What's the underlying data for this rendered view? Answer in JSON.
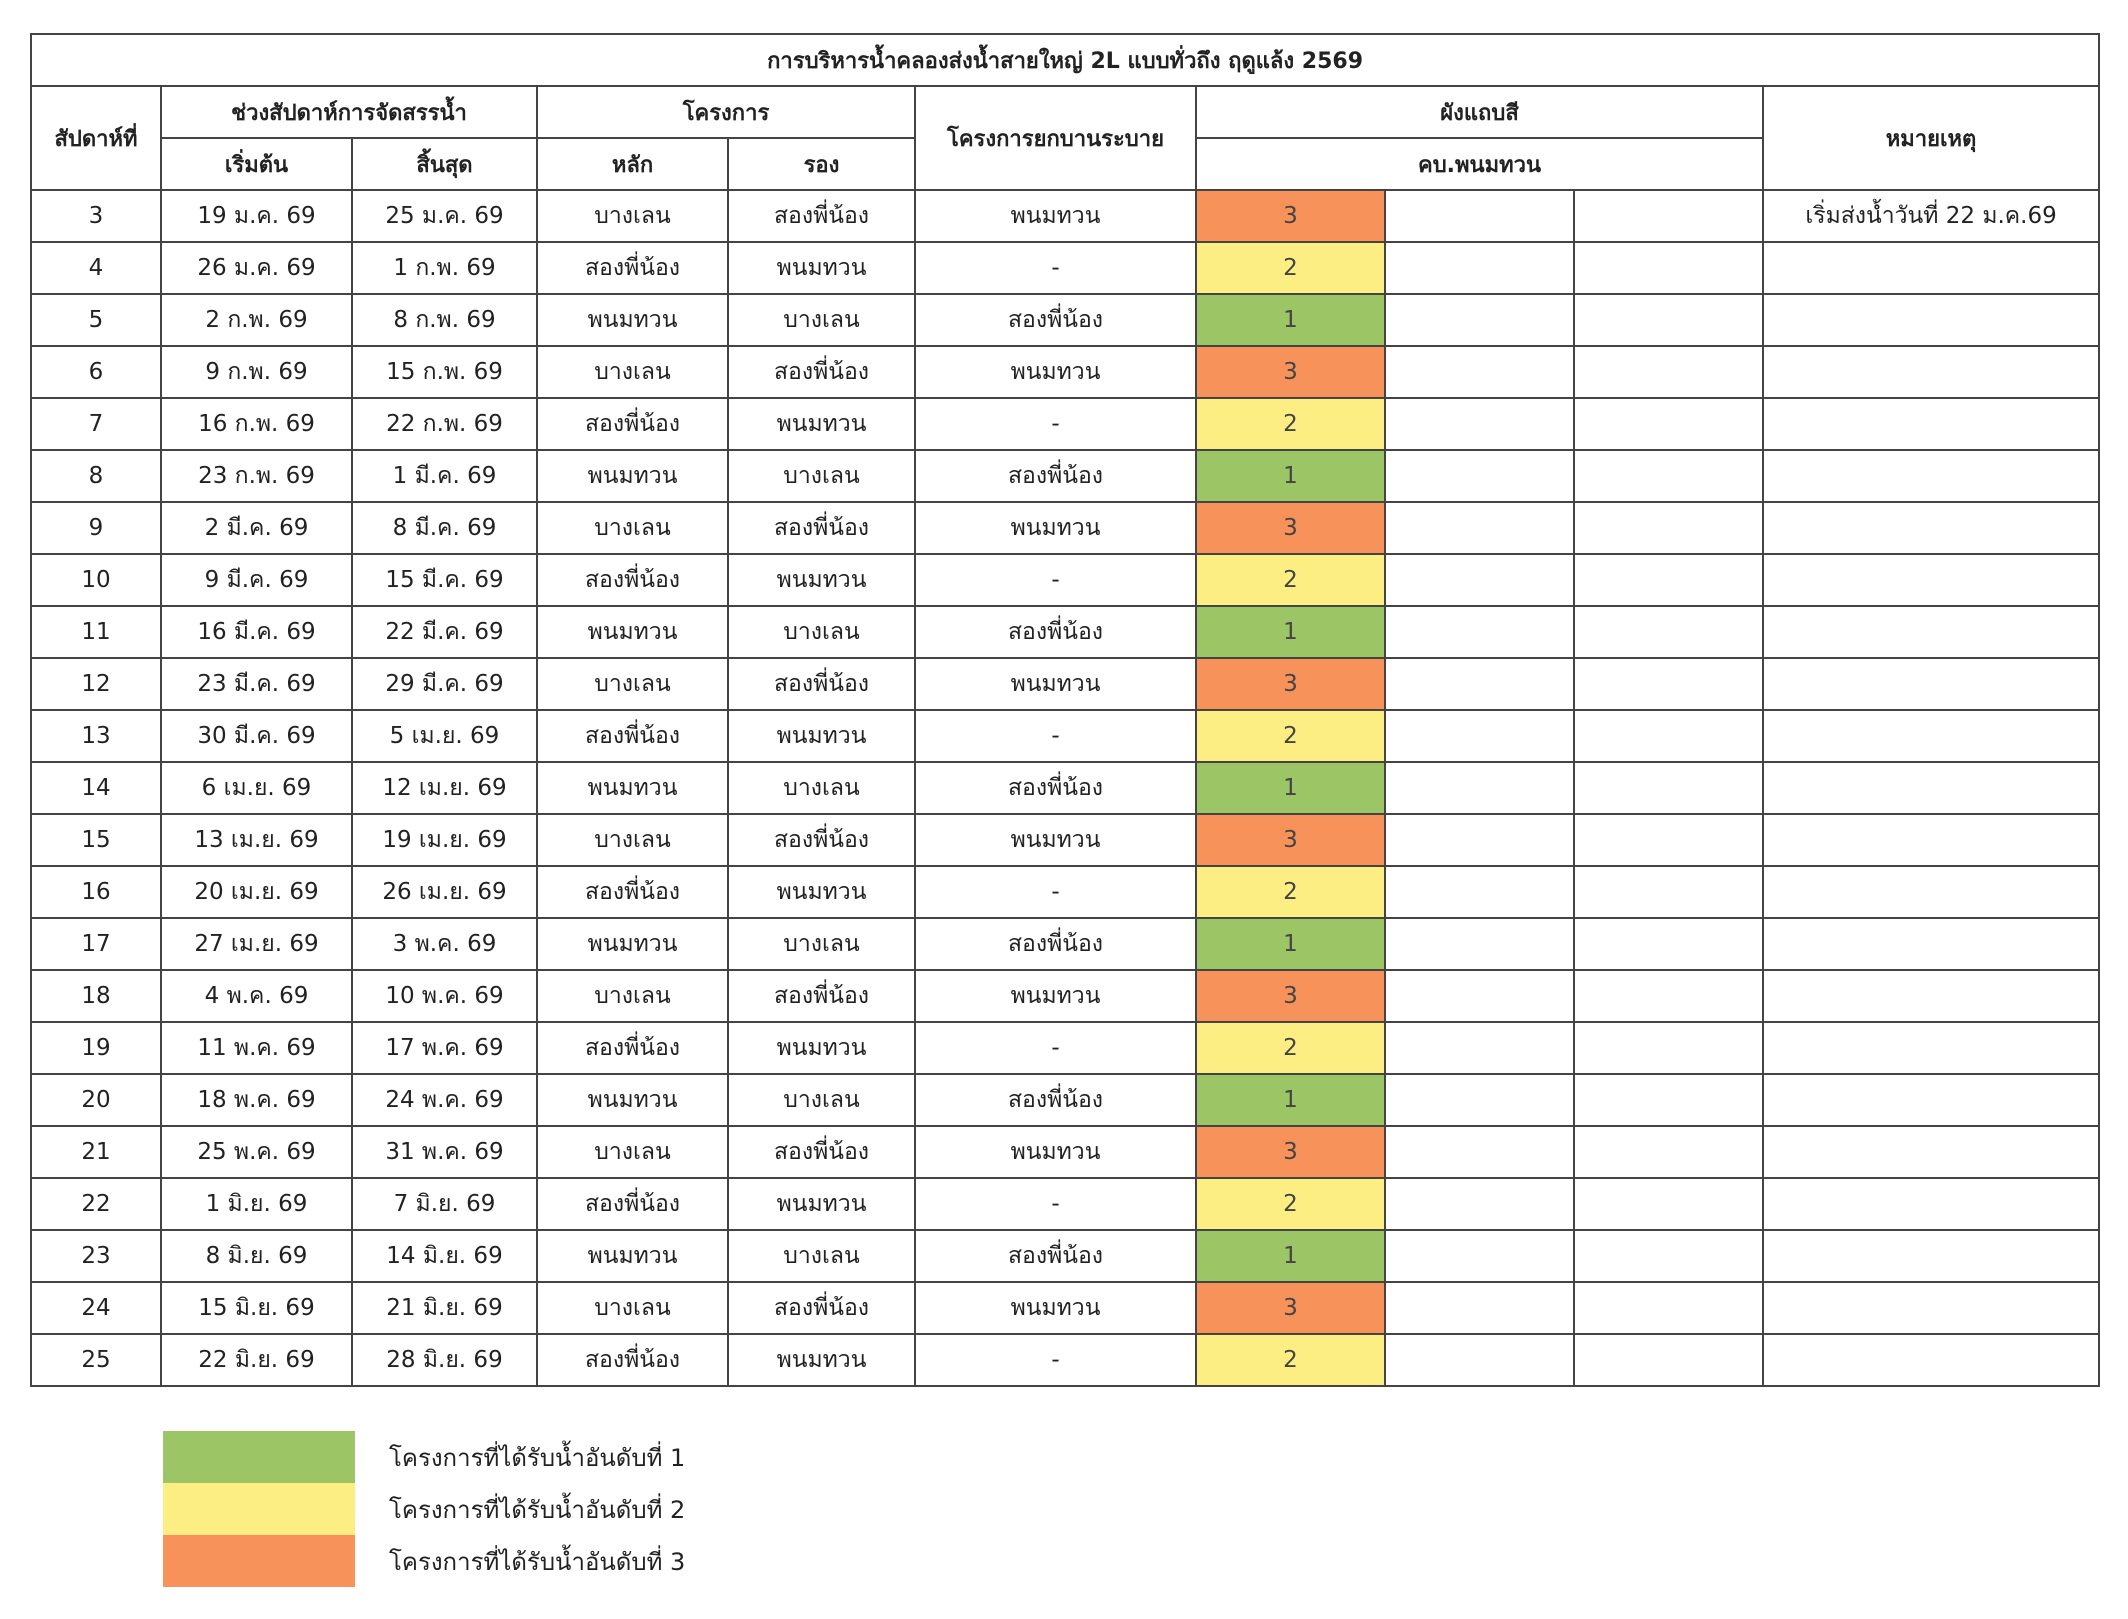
{
  "title": "การบริหารน้ำคลองส่งน้ำสายใหญ่ 2L แบบทั่วถึง ฤดูแล้ง 2569",
  "headers": {
    "week": "สัปดาห์ที่",
    "period": "ช่วงสัปดาห์การจัดสรรน้ำ",
    "start": "เริ่มต้น",
    "end": "สิ้นสุด",
    "project": "โครงการ",
    "main": "หลัก",
    "secondary": "รอง",
    "pump_project": "โครงการยกบานระบาย",
    "color_chart": "ผังแถบสี",
    "canal": "คบ.พนมทวน",
    "remark": "หมายเหตุ"
  },
  "colors": {
    "1": "#9cc565",
    "2": "#fdee84",
    "3": "#f7925a"
  },
  "rows": [
    {
      "week": "3",
      "start": "19 ม.ค. 69",
      "end": "25 ม.ค. 69",
      "main": "บางเลน",
      "secondary": "สองพี่น้อง",
      "pump": "พนมทวน",
      "rank": "3",
      "remark": "เริ่มส่งน้ำวันที่ 22 ม.ค.69"
    },
    {
      "week": "4",
      "start": "26 ม.ค. 69",
      "end": "1 ก.พ. 69",
      "main": "สองพี่น้อง",
      "secondary": "พนมทวน",
      "pump": "-",
      "rank": "2",
      "remark": ""
    },
    {
      "week": "5",
      "start": "2 ก.พ. 69",
      "end": "8 ก.พ. 69",
      "main": "พนมทวน",
      "secondary": "บางเลน",
      "pump": "สองพี่น้อง",
      "rank": "1",
      "remark": ""
    },
    {
      "week": "6",
      "start": "9 ก.พ. 69",
      "end": "15 ก.พ. 69",
      "main": "บางเลน",
      "secondary": "สองพี่น้อง",
      "pump": "พนมทวน",
      "rank": "3",
      "remark": ""
    },
    {
      "week": "7",
      "start": "16 ก.พ. 69",
      "end": "22 ก.พ. 69",
      "main": "สองพี่น้อง",
      "secondary": "พนมทวน",
      "pump": "-",
      "rank": "2",
      "remark": ""
    },
    {
      "week": "8",
      "start": "23 ก.พ. 69",
      "end": "1 มี.ค. 69",
      "main": "พนมทวน",
      "secondary": "บางเลน",
      "pump": "สองพี่น้อง",
      "rank": "1",
      "remark": ""
    },
    {
      "week": "9",
      "start": "2 มี.ค. 69",
      "end": "8 มี.ค. 69",
      "main": "บางเลน",
      "secondary": "สองพี่น้อง",
      "pump": "พนมทวน",
      "rank": "3",
      "remark": ""
    },
    {
      "week": "10",
      "start": "9 มี.ค. 69",
      "end": "15 มี.ค. 69",
      "main": "สองพี่น้อง",
      "secondary": "พนมทวน",
      "pump": "-",
      "rank": "2",
      "remark": ""
    },
    {
      "week": "11",
      "start": "16 มี.ค. 69",
      "end": "22 มี.ค. 69",
      "main": "พนมทวน",
      "secondary": "บางเลน",
      "pump": "สองพี่น้อง",
      "rank": "1",
      "remark": ""
    },
    {
      "week": "12",
      "start": "23 มี.ค. 69",
      "end": "29 มี.ค. 69",
      "main": "บางเลน",
      "secondary": "สองพี่น้อง",
      "pump": "พนมทวน",
      "rank": "3",
      "remark": ""
    },
    {
      "week": "13",
      "start": "30 มี.ค. 69",
      "end": "5 เม.ย. 69",
      "main": "สองพี่น้อง",
      "secondary": "พนมทวน",
      "pump": "-",
      "rank": "2",
      "remark": ""
    },
    {
      "week": "14",
      "start": "6 เม.ย. 69",
      "end": "12 เม.ย. 69",
      "main": "พนมทวน",
      "secondary": "บางเลน",
      "pump": "สองพี่น้อง",
      "rank": "1",
      "remark": ""
    },
    {
      "week": "15",
      "start": "13 เม.ย. 69",
      "end": "19 เม.ย. 69",
      "main": "บางเลน",
      "secondary": "สองพี่น้อง",
      "pump": "พนมทวน",
      "rank": "3",
      "remark": ""
    },
    {
      "week": "16",
      "start": "20 เม.ย. 69",
      "end": "26 เม.ย. 69",
      "main": "สองพี่น้อง",
      "secondary": "พนมทวน",
      "pump": "-",
      "rank": "2",
      "remark": ""
    },
    {
      "week": "17",
      "start": "27 เม.ย. 69",
      "end": "3 พ.ค. 69",
      "main": "พนมทวน",
      "secondary": "บางเลน",
      "pump": "สองพี่น้อง",
      "rank": "1",
      "remark": ""
    },
    {
      "week": "18",
      "start": "4 พ.ค. 69",
      "end": "10 พ.ค. 69",
      "main": "บางเลน",
      "secondary": "สองพี่น้อง",
      "pump": "พนมทวน",
      "rank": "3",
      "remark": ""
    },
    {
      "week": "19",
      "start": "11 พ.ค. 69",
      "end": "17 พ.ค. 69",
      "main": "สองพี่น้อง",
      "secondary": "พนมทวน",
      "pump": "-",
      "rank": "2",
      "remark": ""
    },
    {
      "week": "20",
      "start": "18 พ.ค. 69",
      "end": "24 พ.ค. 69",
      "main": "พนมทวน",
      "secondary": "บางเลน",
      "pump": "สองพี่น้อง",
      "rank": "1",
      "remark": ""
    },
    {
      "week": "21",
      "start": "25 พ.ค. 69",
      "end": "31 พ.ค. 69",
      "main": "บางเลน",
      "secondary": "สองพี่น้อง",
      "pump": "พนมทวน",
      "rank": "3",
      "remark": ""
    },
    {
      "week": "22",
      "start": "1 มิ.ย. 69",
      "end": "7 มิ.ย. 69",
      "main": "สองพี่น้อง",
      "secondary": "พนมทวน",
      "pump": "-",
      "rank": "2",
      "remark": ""
    },
    {
      "week": "23",
      "start": "8 มิ.ย. 69",
      "end": "14 มิ.ย. 69",
      "main": "พนมทวน",
      "secondary": "บางเลน",
      "pump": "สองพี่น้อง",
      "rank": "1",
      "remark": ""
    },
    {
      "week": "24",
      "start": "15 มิ.ย. 69",
      "end": "21 มิ.ย. 69",
      "main": "บางเลน",
      "secondary": "สองพี่น้อง",
      "pump": "พนมทวน",
      "rank": "3",
      "remark": ""
    },
    {
      "week": "25",
      "start": "22 มิ.ย. 69",
      "end": "28 มิ.ย. 69",
      "main": "สองพี่น้อง",
      "secondary": "พนมทวน",
      "pump": "-",
      "rank": "2",
      "remark": ""
    }
  ],
  "legend": [
    {
      "rank": "1",
      "label": "โครงการที่ได้รับน้ำอันดับที่ 1"
    },
    {
      "rank": "2",
      "label": "โครงการที่ได้รับน้ำอันดับที่ 2"
    },
    {
      "rank": "3",
      "label": "โครงการที่ได้รับน้ำอันดับที่ 3"
    }
  ]
}
